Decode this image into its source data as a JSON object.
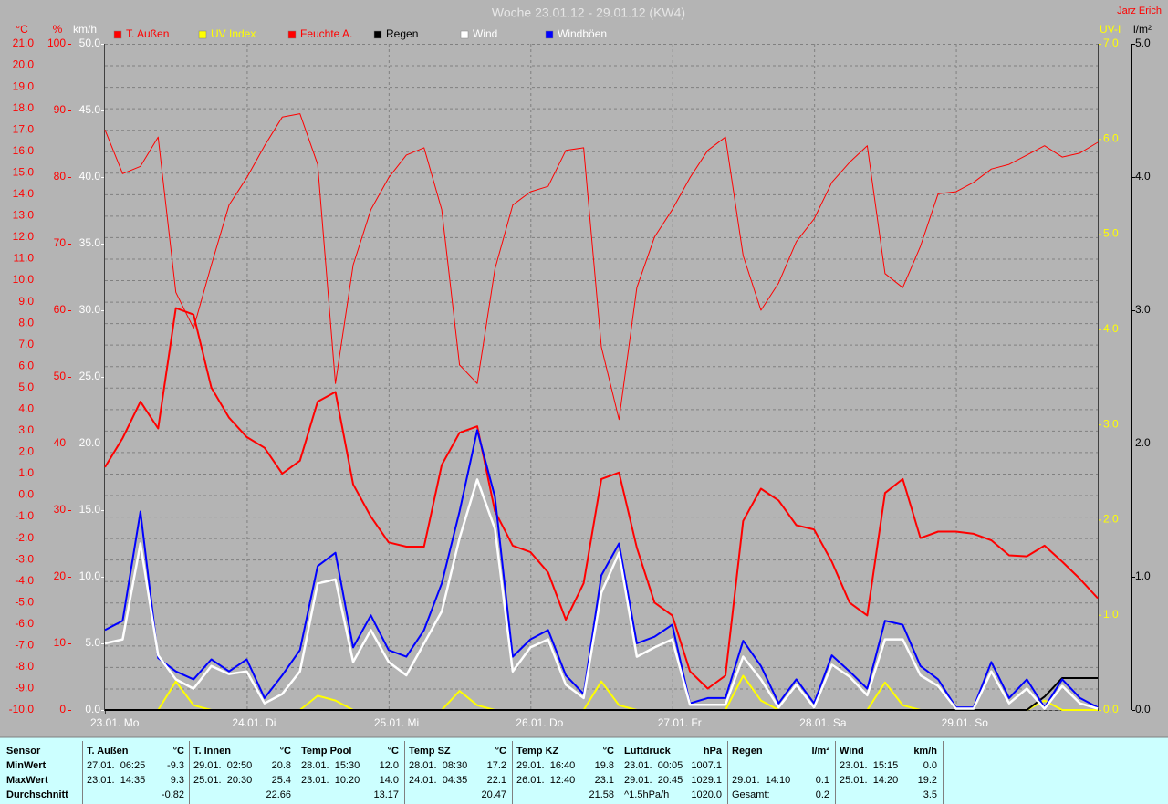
{
  "chart_data": {
    "type": "line",
    "title": "Woche 23.01.12 - 29.01.12 (KW4)",
    "author": "Jarz Erich",
    "x": [
      0,
      0.125,
      0.25,
      0.375,
      0.5,
      0.625,
      0.75,
      0.875,
      1,
      1.125,
      1.25,
      1.375,
      1.5,
      1.625,
      1.75,
      1.875,
      2,
      2.125,
      2.25,
      2.375,
      2.5,
      2.625,
      2.75,
      2.875,
      3,
      3.125,
      3.25,
      3.375,
      3.5,
      3.625,
      3.75,
      3.875,
      4,
      4.125,
      4.25,
      4.375,
      4.5,
      4.625,
      4.75,
      4.875,
      5,
      5.125,
      5.25,
      5.375,
      5.5,
      5.625,
      5.75,
      5.875,
      6,
      6.125,
      6.25,
      6.375,
      6.5,
      6.625,
      6.75,
      6.875,
      7
    ],
    "xlim": [
      0,
      7
    ],
    "xticks": [
      {
        "value": 0,
        "label": "23.01. Mo"
      },
      {
        "value": 1,
        "label": "24.01. Di"
      },
      {
        "value": 2,
        "label": "25.01. Mi"
      },
      {
        "value": 3,
        "label": "26.01. Do"
      },
      {
        "value": 4,
        "label": "27.01. Fr"
      },
      {
        "value": 5,
        "label": "28.01. Sa"
      },
      {
        "value": 6,
        "label": "29.01. So"
      }
    ],
    "y_label": "°C",
    "ylim": [
      -10,
      21
    ],
    "yticks": [
      {
        "value": -10,
        "label": "-10.0"
      },
      {
        "value": -9,
        "label": "-9.0"
      },
      {
        "value": -8,
        "label": "-8.0"
      },
      {
        "value": -7,
        "label": "-7.0"
      },
      {
        "value": -6,
        "label": "-6.0"
      },
      {
        "value": -5,
        "label": "-5.0"
      },
      {
        "value": -4,
        "label": "-4.0"
      },
      {
        "value": -3,
        "label": "-3.0"
      },
      {
        "value": -2,
        "label": "-2.0"
      },
      {
        "value": -1,
        "label": "-1.0"
      },
      {
        "value": 0,
        "label": "0.0"
      },
      {
        "value": 1,
        "label": "1.0"
      },
      {
        "value": 2,
        "label": "2.0"
      },
      {
        "value": 3,
        "label": "3.0"
      },
      {
        "value": 4,
        "label": "4.0"
      },
      {
        "value": 5,
        "label": "5.0"
      },
      {
        "value": 6,
        "label": "6.0"
      },
      {
        "value": 7,
        "label": "7.0"
      },
      {
        "value": 8,
        "label": "8.0"
      },
      {
        "value": 9,
        "label": "9.0"
      },
      {
        "value": 10,
        "label": "10.0"
      },
      {
        "value": 11,
        "label": "11.0"
      },
      {
        "value": 12,
        "label": "12.0"
      },
      {
        "value": 13,
        "label": "13.0"
      },
      {
        "value": 14,
        "label": "14.0"
      },
      {
        "value": 15,
        "label": "15.0"
      },
      {
        "value": 16,
        "label": "16.0"
      },
      {
        "value": 17,
        "label": "17.0"
      },
      {
        "value": 18,
        "label": "18.0"
      },
      {
        "value": 19,
        "label": "19.0"
      },
      {
        "value": 20,
        "label": "20.0"
      },
      {
        "value": 21,
        "label": "21.0"
      }
    ],
    "y2_label": "%",
    "y2lim": [
      0,
      100
    ],
    "y2ticks": [
      0,
      10,
      20,
      30,
      40,
      50,
      60,
      70,
      80,
      90,
      100
    ],
    "y3_label": "km/h",
    "y3lim": [
      0,
      50
    ],
    "y3ticks": [
      {
        "value": 0,
        "label": "0.0"
      },
      {
        "value": 5,
        "label": "5.0"
      },
      {
        "value": 10,
        "label": "10.0"
      },
      {
        "value": 15,
        "label": "15.0"
      },
      {
        "value": 20,
        "label": "20.0"
      },
      {
        "value": 25,
        "label": "25.0"
      },
      {
        "value": 30,
        "label": "30.0"
      },
      {
        "value": 35,
        "label": "35.0"
      },
      {
        "value": 40,
        "label": "40.0"
      },
      {
        "value": 45,
        "label": "45.0"
      },
      {
        "value": 50,
        "label": "50.0"
      }
    ],
    "y4_label": "UV-I",
    "y4lim": [
      0,
      7
    ],
    "y4ticks": [
      {
        "value": 0,
        "label": "0.0"
      },
      {
        "value": 1,
        "label": "1.0"
      },
      {
        "value": 2,
        "label": "2.0"
      },
      {
        "value": 3,
        "label": "3.0"
      },
      {
        "value": 4,
        "label": "4.0"
      },
      {
        "value": 5,
        "label": "5.0"
      },
      {
        "value": 6,
        "label": "6.0"
      },
      {
        "value": 7,
        "label": "7.0"
      }
    ],
    "y5_label": "l/m²",
    "y5lim": [
      0,
      5
    ],
    "y5ticks": [
      {
        "value": 0,
        "label": "0.0"
      },
      {
        "value": 1,
        "label": "1.0"
      },
      {
        "value": 2,
        "label": "2.0"
      },
      {
        "value": 3,
        "label": "3.0"
      },
      {
        "value": 4,
        "label": "4.0"
      },
      {
        "value": 5,
        "label": "5.0"
      }
    ],
    "grid": true,
    "series": [
      {
        "name": "T. Außen",
        "color": "#ff0000",
        "axis": "y",
        "values": [
          1.3,
          2.65,
          4.35,
          3.1,
          8.7,
          8.4,
          5.0,
          3.6,
          2.7,
          2.2,
          1.0,
          1.6,
          4.35,
          4.8,
          0.5,
          -1.0,
          -2.2,
          -2.4,
          -2.4,
          1.4,
          2.9,
          3.2,
          -0.75,
          -2.35,
          -2.65,
          -3.6,
          -5.8,
          -4.1,
          0.75,
          1.05,
          -2.45,
          -5.0,
          -5.6,
          -8.2,
          -9.0,
          -8.4,
          -1.2,
          0.3,
          -0.25,
          -1.4,
          -1.6,
          -3.1,
          -5.0,
          -5.6,
          0.1,
          0.75,
          -2.0,
          -1.7,
          -1.7,
          -1.8,
          -2.1,
          -2.8,
          -2.85,
          -2.35,
          -3.1,
          -3.9,
          -4.8
        ]
      },
      {
        "name": "UV Index",
        "color": "#ffff00",
        "axis": "y4",
        "values": [
          0,
          0,
          0,
          0,
          0.3,
          0.05,
          0,
          0,
          0,
          0,
          0,
          0,
          0.15,
          0.1,
          0,
          0,
          0,
          0,
          0,
          0,
          0.2,
          0.05,
          0,
          0,
          0,
          0,
          0,
          0,
          0.3,
          0.05,
          0,
          0,
          0,
          0,
          0,
          0,
          0.36,
          0.1,
          0,
          0,
          0,
          0,
          0,
          0,
          0.29,
          0.05,
          0,
          0,
          0,
          0,
          0,
          0,
          0,
          0.1,
          0,
          0,
          0
        ]
      },
      {
        "name": "Feuchte A.",
        "color": "#ff0000",
        "axis": "y2",
        "values": [
          87.1,
          80.5,
          81.6,
          86.0,
          62.7,
          57.3,
          66.8,
          75.8,
          79.9,
          84.7,
          89.0,
          89.5,
          81.9,
          49.0,
          66.8,
          75.1,
          79.9,
          83.3,
          84.4,
          75.1,
          51.8,
          49.0,
          66.2,
          75.8,
          77.8,
          78.6,
          84.0,
          84.4,
          54.5,
          43.6,
          63.4,
          71.0,
          75.1,
          79.9,
          84.0,
          86.0,
          68.2,
          60.0,
          64.1,
          70.3,
          73.7,
          79.2,
          82.2,
          84.7,
          65.5,
          63.4,
          69.6,
          77.5,
          77.8,
          79.2,
          81.2,
          81.9,
          83.3,
          84.7,
          83.0,
          83.6,
          85.2
        ]
      },
      {
        "name": "Regen",
        "color": "#000000",
        "axis": "y5",
        "values": [
          0,
          0,
          0,
          0,
          0,
          0,
          0,
          0,
          0,
          0,
          0,
          0,
          0,
          0,
          0,
          0,
          0,
          0,
          0,
          0,
          0,
          0,
          0,
          0,
          0,
          0,
          0,
          0,
          0,
          0,
          0,
          0,
          0,
          0,
          0,
          0,
          0,
          0,
          0,
          0,
          0,
          0,
          0,
          0,
          0,
          0,
          0,
          0,
          0,
          0,
          0,
          0,
          0,
          0.1,
          0.24,
          0.24,
          0.24
        ]
      },
      {
        "name": "Wind",
        "color": "#ffffff",
        "axis": "y3",
        "values": [
          5.0,
          5.3,
          12.5,
          4.1,
          2.3,
          1.6,
          3.3,
          2.7,
          2.9,
          0.5,
          1.2,
          2.9,
          9.5,
          9.8,
          3.6,
          6.0,
          3.6,
          2.6,
          5.0,
          7.4,
          12.9,
          17.3,
          13.6,
          2.9,
          4.7,
          5.3,
          1.9,
          0.9,
          8.8,
          11.8,
          4.0,
          4.7,
          5.3,
          0.4,
          0.4,
          0.4,
          4.0,
          2.3,
          0.2,
          1.9,
          0.2,
          3.4,
          2.5,
          1.1,
          5.3,
          5.3,
          2.6,
          1.8,
          0.1,
          0.1,
          2.9,
          0.5,
          1.6,
          0.1,
          1.8,
          0.5,
          0.1
        ]
      },
      {
        "name": "Windböen",
        "color": "#0000ff",
        "axis": "y3",
        "values": [
          6.0,
          6.7,
          14.9,
          3.9,
          2.9,
          2.3,
          3.8,
          2.9,
          3.8,
          0.9,
          2.6,
          4.5,
          10.8,
          11.8,
          4.7,
          7.1,
          4.5,
          4.0,
          6.0,
          9.5,
          14.9,
          21.0,
          16.0,
          4.0,
          5.3,
          6.0,
          2.6,
          1.2,
          10.1,
          12.5,
          5.0,
          5.5,
          6.4,
          0.5,
          0.9,
          0.9,
          5.2,
          3.3,
          0.5,
          2.3,
          0.5,
          4.1,
          2.9,
          1.6,
          6.7,
          6.4,
          3.3,
          2.3,
          0.2,
          0.2,
          3.6,
          0.9,
          2.3,
          0.2,
          2.3,
          0.9,
          0.2
        ]
      }
    ]
  },
  "stats": {
    "corner": "Sensor",
    "columns": [
      [
        "T. Außen",
        "°C"
      ],
      [
        "T. Innen",
        "°C"
      ],
      [
        "Temp Pool",
        "°C"
      ],
      [
        "Temp SZ",
        "°C"
      ],
      [
        "Temp KZ",
        "°C"
      ],
      [
        "Luftdruck",
        "hPa"
      ],
      [
        "Regen",
        "l/m²"
      ],
      [
        "Wind",
        "km/h"
      ]
    ],
    "rows": [
      {
        "label": "MinWert",
        "cells": [
          [
            "27.01.  06:25",
            "-9.3"
          ],
          [
            "29.01.  02:50",
            "20.8"
          ],
          [
            "28.01.  15:30",
            "12.0"
          ],
          [
            "28.01.  08:30",
            "17.2"
          ],
          [
            "29.01.  16:40",
            "19.8"
          ],
          [
            "23.01.  00:05",
            "1007.1"
          ],
          null,
          [
            "23.01.  15:15",
            "0.0"
          ]
        ]
      },
      {
        "label": "MaxWert",
        "cells": [
          [
            "23.01.  14:35",
            "9.3"
          ],
          [
            "25.01.  20:30",
            "25.4"
          ],
          [
            "23.01.  10:20",
            "14.0"
          ],
          [
            "24.01.  04:35",
            "22.1"
          ],
          [
            "26.01.  12:40",
            "23.1"
          ],
          [
            "29.01.  20:45",
            "1029.1"
          ],
          [
            "29.01.  14:10",
            "0.1"
          ],
          [
            "25.01.  14:20",
            "19.2"
          ]
        ]
      },
      {
        "label": "Durchschnitt",
        "cells": [
          [
            "-0.82"
          ],
          [
            "22.66"
          ],
          [
            "13.17"
          ],
          [
            "20.47"
          ],
          [
            "21.58"
          ],
          [
            "^1.5hPa/h",
            "1020.0"
          ],
          [
            "Gesamt:",
            "0.2"
          ],
          [
            "3.5"
          ]
        ]
      }
    ]
  }
}
